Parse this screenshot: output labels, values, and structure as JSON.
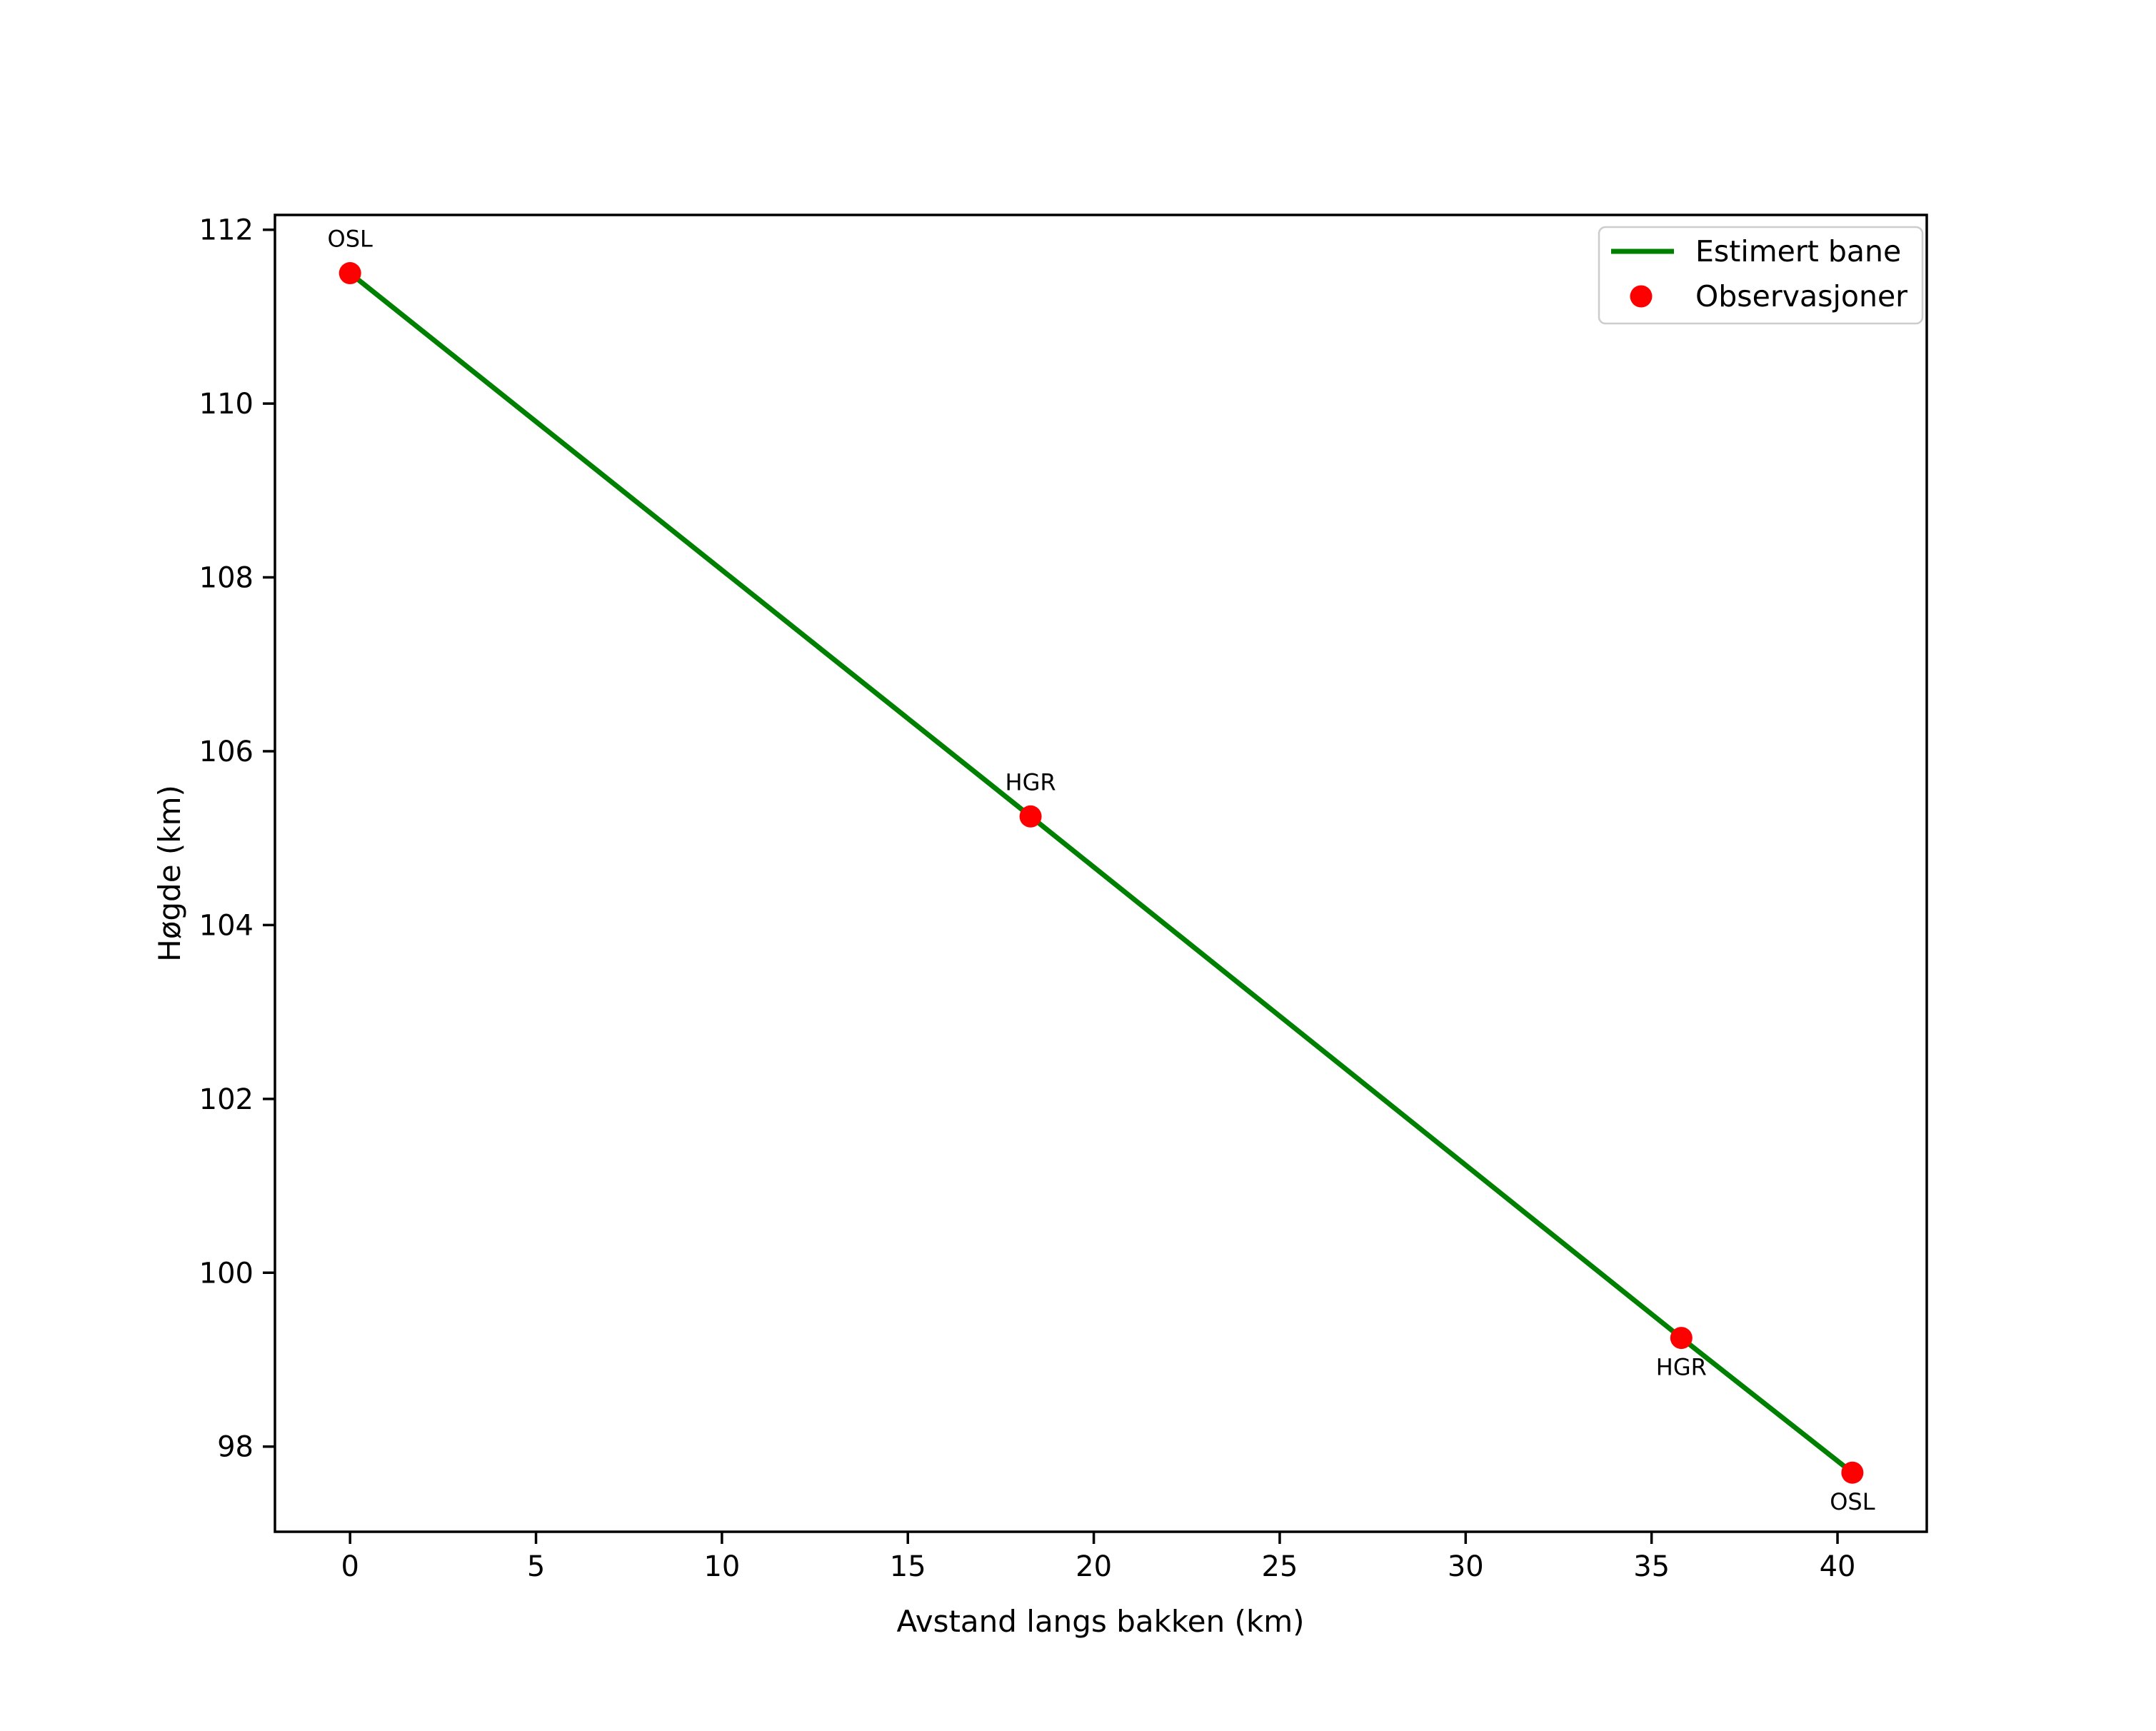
{
  "chart_data": {
    "type": "line",
    "title": "",
    "xlabel": "Avstand langs bakken (km)",
    "ylabel": "Høgde (km)",
    "background": "#ffffff",
    "axis_color": "#000000",
    "grid": false,
    "xlim": [
      -2.02,
      42.4
    ],
    "ylim": [
      97.02,
      112.17
    ],
    "xticks": [
      0,
      5,
      10,
      15,
      20,
      25,
      30,
      35,
      40
    ],
    "yticks": [
      98,
      100,
      102,
      104,
      106,
      108,
      110,
      112
    ],
    "series": [
      {
        "name": "Estimert bane",
        "type": "line",
        "color": "#008000",
        "x": [
          0,
          18.3,
          35.8,
          40.4
        ],
        "y": [
          111.5,
          105.25,
          99.25,
          97.7
        ]
      },
      {
        "name": "Observasjoner",
        "type": "scatter",
        "color": "#ff0000",
        "x": [
          0,
          18.3,
          35.8,
          40.4
        ],
        "y": [
          111.5,
          105.25,
          99.25,
          97.7
        ]
      }
    ],
    "annotations": [
      {
        "text": "OSL",
        "x": 0,
        "y": 111.5,
        "placement": "above"
      },
      {
        "text": "HGR",
        "x": 18.3,
        "y": 105.25,
        "placement": "above"
      },
      {
        "text": "HGR",
        "x": 35.8,
        "y": 99.25,
        "placement": "below"
      },
      {
        "text": "OSL",
        "x": 40.4,
        "y": 97.7,
        "placement": "below"
      }
    ],
    "legend": {
      "position": "upper right",
      "edge_color": "#cccccc",
      "face_color": "#ffffff",
      "entries": [
        {
          "label": "Estimert bane",
          "marker": "line",
          "color": "#008000"
        },
        {
          "label": "Observasjoner",
          "marker": "dot",
          "color": "#ff0000"
        }
      ]
    }
  }
}
